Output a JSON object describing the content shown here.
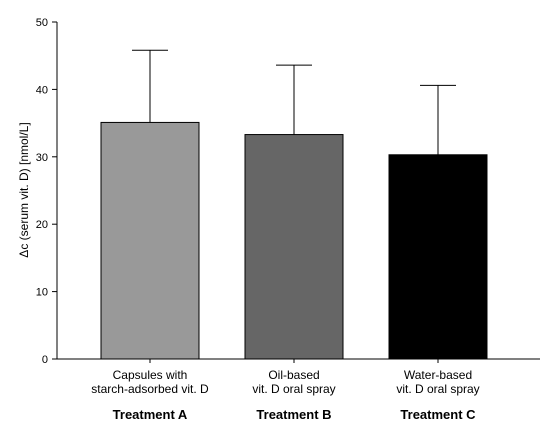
{
  "chart_data": {
    "type": "bar",
    "ylabel": "Δc (serum vit. D) [nmol/L]",
    "ylim": [
      0,
      50
    ],
    "yticks": [
      0,
      10,
      20,
      30,
      40,
      50
    ],
    "grid": false,
    "categories": [
      {
        "lines": [
          "Capsules with",
          "starch-adsorbed vit. D"
        ],
        "group": "Treatment A"
      },
      {
        "lines": [
          "Oil-based",
          "vit. D oral spray"
        ],
        "group": "Treatment B"
      },
      {
        "lines": [
          "Water-based",
          "vit. D oral spray"
        ],
        "group": "Treatment C"
      }
    ],
    "values": [
      35.1,
      33.3,
      30.3
    ],
    "error_upper": [
      45.8,
      43.6,
      40.6
    ],
    "colors": [
      "#999999",
      "#666666",
      "#000000"
    ]
  }
}
